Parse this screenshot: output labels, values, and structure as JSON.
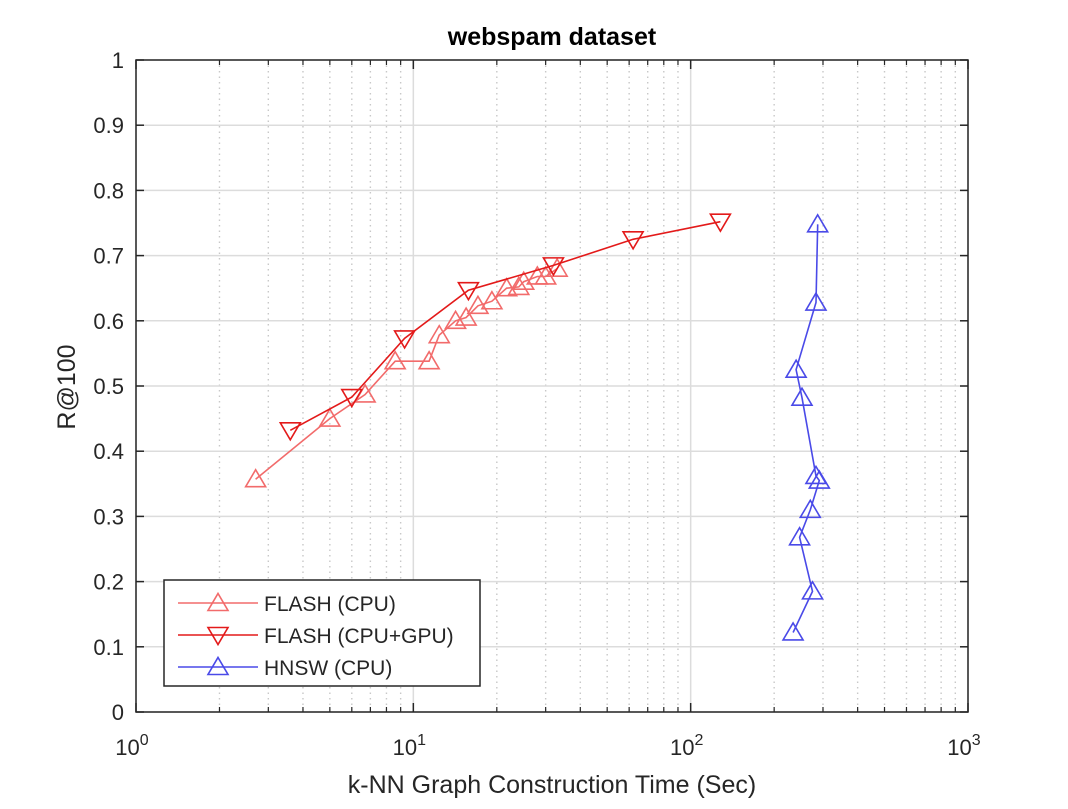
{
  "chart_data": {
    "type": "line",
    "title": "webspam dataset",
    "xlabel": "k-NN Graph Construction Time (Sec)",
    "ylabel": "R@100",
    "xscale": "log",
    "xlim": [
      1,
      1000
    ],
    "ylim": [
      0,
      1
    ],
    "grid": true,
    "legend_position": "bottom-left",
    "x_ticks": [
      {
        "base": "10",
        "exp": "0"
      },
      {
        "base": "10",
        "exp": "1"
      },
      {
        "base": "10",
        "exp": "2"
      },
      {
        "base": "10",
        "exp": "3"
      }
    ],
    "y_ticks": [
      "0",
      "0.1",
      "0.2",
      "0.3",
      "0.4",
      "0.5",
      "0.6",
      "0.7",
      "0.8",
      "0.9",
      "1"
    ],
    "series": [
      {
        "name": "FLASH (CPU)",
        "color": "#f26b6b",
        "marker": "triangle-up",
        "points": [
          [
            2.7,
            0.357
          ],
          [
            5.0,
            0.45
          ],
          [
            6.7,
            0.487
          ],
          [
            8.6,
            0.538
          ],
          [
            11.4,
            0.538
          ],
          [
            12.4,
            0.578
          ],
          [
            14.2,
            0.6
          ],
          [
            15.5,
            0.605
          ],
          [
            17.1,
            0.623
          ],
          [
            19.2,
            0.63
          ],
          [
            21.7,
            0.65
          ],
          [
            24.0,
            0.652
          ],
          [
            25.0,
            0.66
          ],
          [
            28.0,
            0.668
          ],
          [
            30.0,
            0.668
          ],
          [
            33.0,
            0.68
          ]
        ]
      },
      {
        "name": "FLASH (CPU+GPU)",
        "color": "#e31a1a",
        "marker": "triangle-down",
        "points": [
          [
            3.6,
            0.432
          ],
          [
            6.0,
            0.483
          ],
          [
            9.3,
            0.573
          ],
          [
            15.8,
            0.647
          ],
          [
            32.0,
            0.685
          ],
          [
            62.0,
            0.725
          ],
          [
            128.0,
            0.752
          ]
        ]
      },
      {
        "name": "HNSW (CPU)",
        "color": "#4a4ae8",
        "marker": "triangle-up",
        "points": [
          [
            287,
            0.748
          ],
          [
            283,
            0.628
          ],
          [
            240,
            0.525
          ],
          [
            252,
            0.482
          ],
          [
            283,
            0.362
          ],
          [
            291,
            0.355
          ],
          [
            270,
            0.31
          ],
          [
            247,
            0.268
          ],
          [
            275,
            0.185
          ],
          [
            234,
            0.122
          ]
        ]
      }
    ]
  }
}
